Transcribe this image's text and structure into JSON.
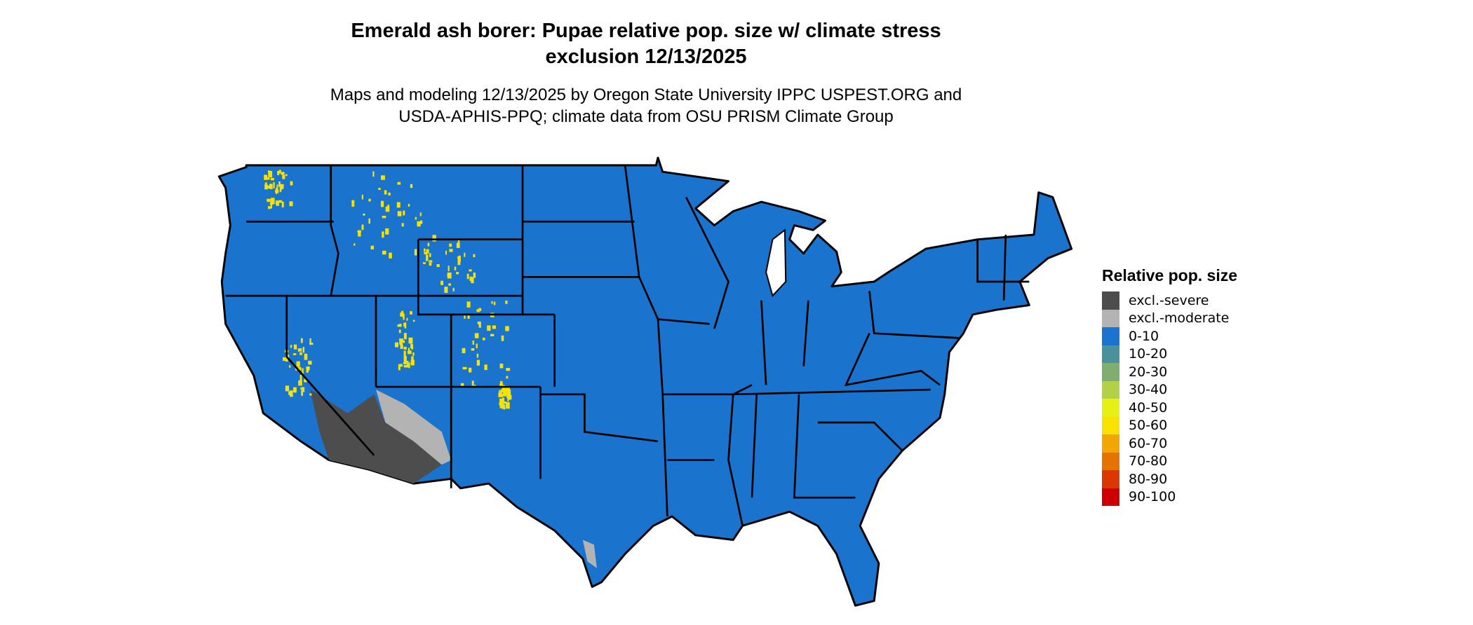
{
  "title_line1": "Emerald ash borer: Pupae relative pop. size w/ climate stress",
  "title_line2": "exclusion 12/13/2025",
  "subtitle_line1": "Maps and modeling 12/13/2025 by Oregon State University IPPC USPEST.ORG and",
  "subtitle_line2": "USDA-APHIS-PPQ; climate data from OSU PRISM Climate Group",
  "chart_data": {
    "type": "map",
    "region": "Contiguous United States (state boundaries)",
    "legend_title": "Relative pop. size",
    "legend_placement": "right",
    "categories": [
      {
        "label": "excl.-severe",
        "color": "#4d4d4d"
      },
      {
        "label": "excl.-moderate",
        "color": "#b3b3b3"
      },
      {
        "label": "0-10",
        "color": "#1a73cc"
      },
      {
        "label": "10-20",
        "color": "#4a919b"
      },
      {
        "label": "20-30",
        "color": "#7fae72"
      },
      {
        "label": "30-40",
        "color": "#b3d147"
      },
      {
        "label": "40-50",
        "color": "#e6f015"
      },
      {
        "label": "50-60",
        "color": "#f7e200"
      },
      {
        "label": "60-70",
        "color": "#f0a800"
      },
      {
        "label": "70-80",
        "color": "#e57300"
      },
      {
        "label": "80-90",
        "color": "#db3800"
      },
      {
        "label": "90-100",
        "color": "#cc0000"
      }
    ]
  }
}
